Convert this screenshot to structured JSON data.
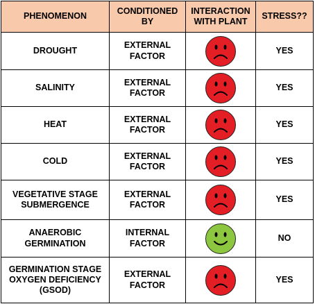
{
  "table": {
    "headers": [
      "PHENOMENON",
      "CONDITIONED BY",
      "INTERACTION WITH PLANT",
      "STRESS??"
    ],
    "rows": [
      {
        "phenomenon": "DROUGHT",
        "conditioned_by": "EXTERNAL FACTOR",
        "interaction": "sad-face-icon",
        "stress": "YES"
      },
      {
        "phenomenon": "SALINITY",
        "conditioned_by": "EXTERNAL FACTOR",
        "interaction": "sad-face-icon",
        "stress": "YES"
      },
      {
        "phenomenon": "HEAT",
        "conditioned_by": "EXTERNAL FACTOR",
        "interaction": "sad-face-icon",
        "stress": "YES"
      },
      {
        "phenomenon": "COLD",
        "conditioned_by": "EXTERNAL FACTOR",
        "interaction": "sad-face-icon",
        "stress": "YES"
      },
      {
        "phenomenon": "VEGETATIVE STAGE SUBMERGENCE",
        "conditioned_by": "EXTERNAL FACTOR",
        "interaction": "sad-face-icon",
        "stress": "YES"
      },
      {
        "phenomenon": "ANAEROBIC GERMINATION",
        "conditioned_by": "INTERNAL FACTOR",
        "interaction": "happy-face-icon",
        "stress": "NO"
      },
      {
        "phenomenon": "GERMINATION STAGE OXYGEN DEFICIENCY (GSOD)",
        "conditioned_by": "EXTERNAL FACTOR",
        "interaction": "sad-face-icon",
        "stress": "YES"
      }
    ]
  },
  "colors": {
    "header_bg": "#f9c9ab",
    "sad_face": "#e31e24",
    "happy_face": "#8dc63f",
    "border": "#000000"
  }
}
